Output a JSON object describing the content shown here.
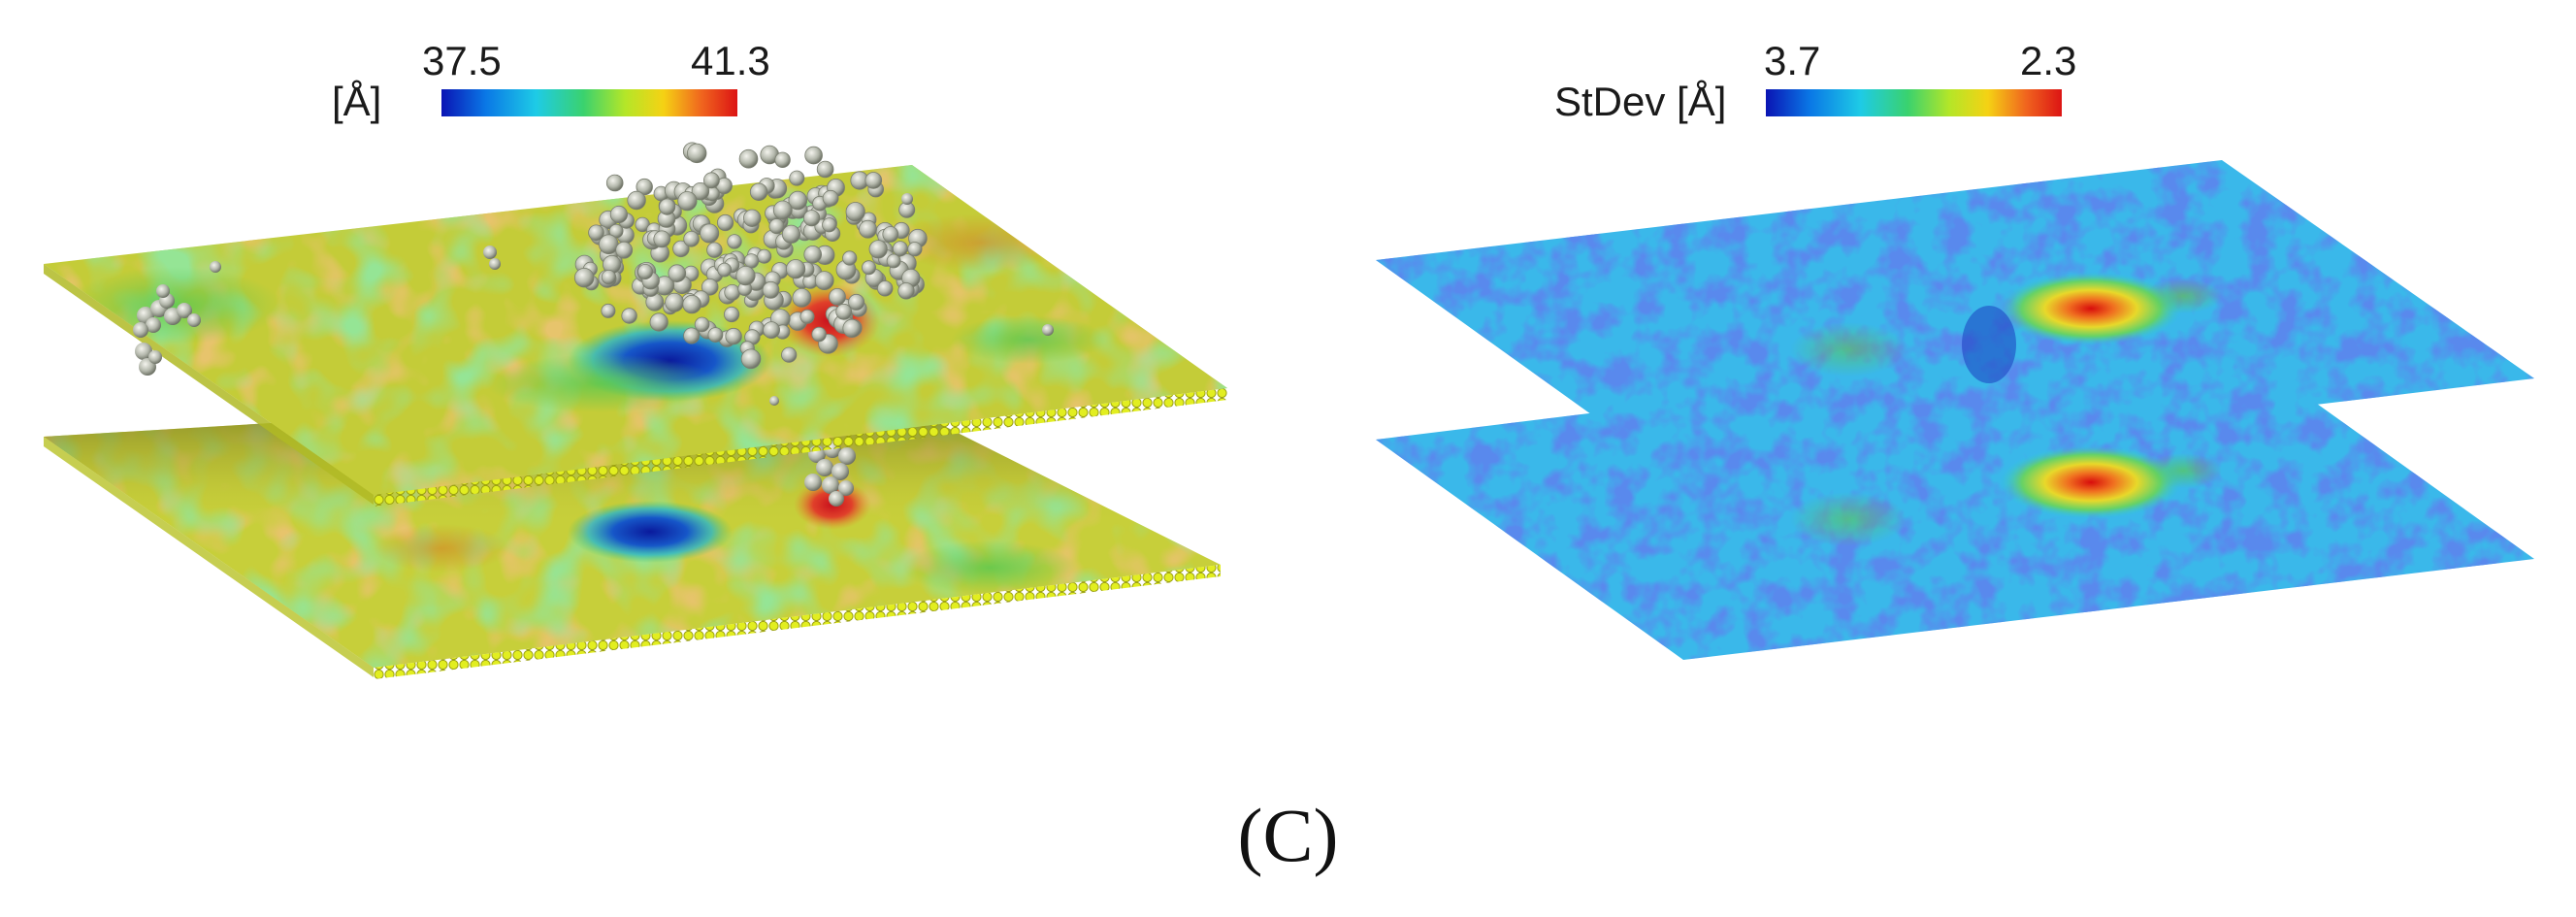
{
  "figure": {
    "panel_label": "(C)",
    "left_panel": {
      "colorbar": {
        "label": "[Å]",
        "min_label": "37.5",
        "max_label": "41.3",
        "colormap": [
          "#0a14b4",
          "#0a78e6",
          "#1ecbe6",
          "#3ad26e",
          "#b4e628",
          "#f5d214",
          "#f0641e",
          "#dc1414"
        ]
      }
    },
    "right_panel": {
      "colorbar": {
        "label": "StDev [Å]",
        "min_label": "3.7",
        "max_label": "2.3",
        "colormap": [
          "#0a14b4",
          "#0a78e6",
          "#1ecbe6",
          "#3ad26e",
          "#b4e628",
          "#f5d214",
          "#f0641e",
          "#dc1414"
        ]
      }
    }
  }
}
